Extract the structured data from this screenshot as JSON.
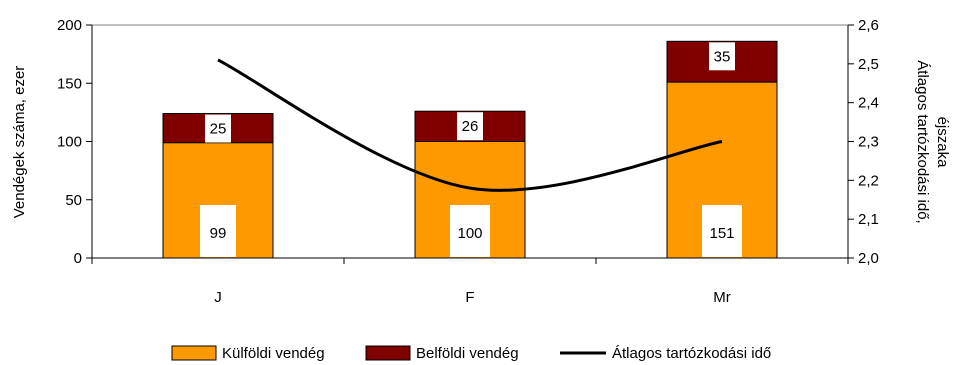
{
  "chart_data": {
    "type": "bar",
    "stacked": true,
    "categories": [
      "J",
      "F",
      "Mr"
    ],
    "series": [
      {
        "name": "Külföldi vendég",
        "values": [
          99,
          100,
          151
        ],
        "color": "#FF9900",
        "axis": "left"
      },
      {
        "name": "Belföldi vendég",
        "values": [
          25,
          26,
          35
        ],
        "color": "#800000",
        "axis": "left"
      }
    ],
    "line": {
      "name": "Átlagos tartózkodási idő",
      "color": "#000000",
      "axis": "right",
      "values": [
        2.51,
        2.18,
        2.3
      ]
    },
    "ylabel": "Vendégek száma, ezer",
    "ylabel_right": [
      "Átlagos tartózkodási idő,",
      "éjszaka"
    ],
    "ylim": [
      0,
      200
    ],
    "yticks": [
      "0",
      "50",
      "100",
      "150",
      "200"
    ],
    "ylim_right": [
      2.0,
      2.6
    ],
    "yticks_right": [
      "2,0",
      "2,1",
      "2,2",
      "2,3",
      "2,4",
      "2,5",
      "2,6"
    ],
    "grid": false,
    "legend_position": "bottom"
  }
}
